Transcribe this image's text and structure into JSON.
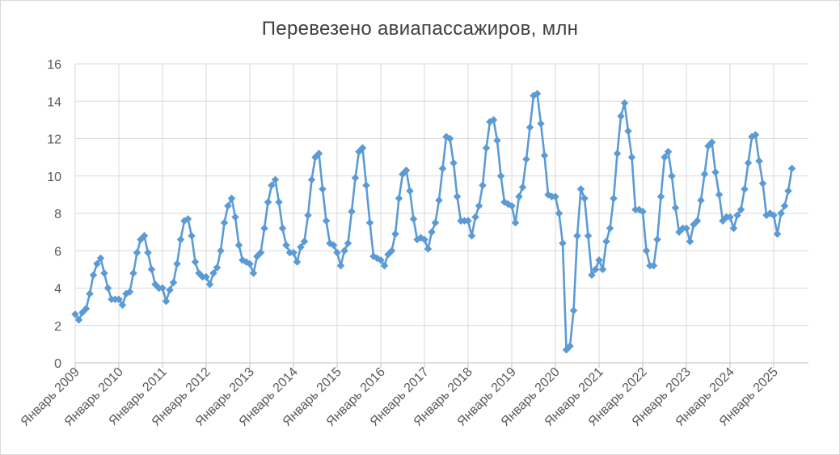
{
  "chart_data": {
    "type": "line",
    "title": "Перевезено авиапассажиров, млн",
    "xlabel": "",
    "ylabel": "",
    "ylim": [
      0,
      16
    ],
    "y_ticks": [
      0,
      2,
      4,
      6,
      8,
      10,
      12,
      14,
      16
    ],
    "grid": true,
    "legend": "none",
    "marker": "diamond",
    "line_color": "#5B9BD5",
    "x_start": "2009-01",
    "x_tick_labels": [
      "Январь 2009",
      "Январь 2010",
      "Январь 2011",
      "Январь 2012",
      "Январь 2013",
      "Январь 2014",
      "Январь 2015",
      "Январь 2016",
      "Январь 2017",
      "Январь 2018",
      "Январь 2019",
      "Январь 2020",
      "Январь 2021",
      "Январь 2022",
      "Январь 2023",
      "Январь 2024",
      "Январь 2025"
    ],
    "series": [
      {
        "values": [
          2.6,
          2.3,
          2.7,
          2.9,
          3.7,
          4.7,
          5.3,
          5.6,
          4.8,
          4.0,
          3.4,
          3.4,
          3.4,
          3.1,
          3.7,
          3.8,
          4.8,
          5.9,
          6.6,
          6.8,
          5.9,
          5.0,
          4.2,
          4.0,
          4.0,
          3.3,
          3.9,
          4.3,
          5.3,
          6.6,
          7.6,
          7.7,
          6.8,
          5.4,
          4.8,
          4.6,
          4.6,
          4.2,
          4.8,
          5.1,
          6.0,
          7.5,
          8.4,
          8.8,
          7.8,
          6.3,
          5.5,
          5.4,
          5.3,
          4.8,
          5.7,
          5.9,
          7.2,
          8.6,
          9.5,
          9.8,
          8.6,
          7.2,
          6.3,
          5.9,
          5.9,
          5.4,
          6.2,
          6.5,
          7.9,
          9.8,
          11.0,
          11.2,
          9.3,
          7.6,
          6.4,
          6.3,
          5.9,
          5.2,
          6.0,
          6.4,
          8.1,
          9.9,
          11.3,
          11.5,
          9.5,
          7.5,
          5.7,
          5.6,
          5.5,
          5.2,
          5.8,
          6.0,
          6.9,
          8.8,
          10.1,
          10.3,
          9.2,
          7.7,
          6.6,
          6.7,
          6.6,
          6.1,
          7.0,
          7.5,
          8.7,
          10.4,
          12.1,
          12.0,
          10.7,
          8.9,
          7.6,
          7.6,
          7.6,
          6.8,
          7.8,
          8.4,
          9.5,
          11.5,
          12.9,
          13.0,
          11.9,
          10.0,
          8.6,
          8.5,
          8.4,
          7.5,
          8.9,
          9.4,
          10.9,
          12.6,
          14.3,
          14.4,
          12.8,
          11.1,
          9.0,
          8.9,
          8.9,
          8.0,
          6.4,
          0.7,
          0.9,
          2.8,
          6.8,
          9.3,
          8.8,
          6.8,
          4.7,
          5.0,
          5.5,
          5.0,
          6.5,
          7.2,
          8.8,
          11.2,
          13.2,
          13.9,
          12.4,
          11.0,
          8.2,
          8.2,
          8.1,
          6.0,
          5.2,
          5.2,
          6.6,
          8.9,
          11.0,
          11.3,
          10.0,
          8.3,
          7.0,
          7.2,
          7.2,
          6.5,
          7.4,
          7.6,
          8.7,
          10.1,
          11.6,
          11.8,
          10.2,
          9.0,
          7.6,
          7.8,
          7.8,
          7.2,
          7.9,
          8.2,
          9.3,
          10.7,
          12.1,
          12.2,
          10.8,
          9.6,
          7.9,
          8.0,
          7.9,
          6.9,
          8.0,
          8.4,
          9.2,
          10.4
        ]
      }
    ]
  }
}
